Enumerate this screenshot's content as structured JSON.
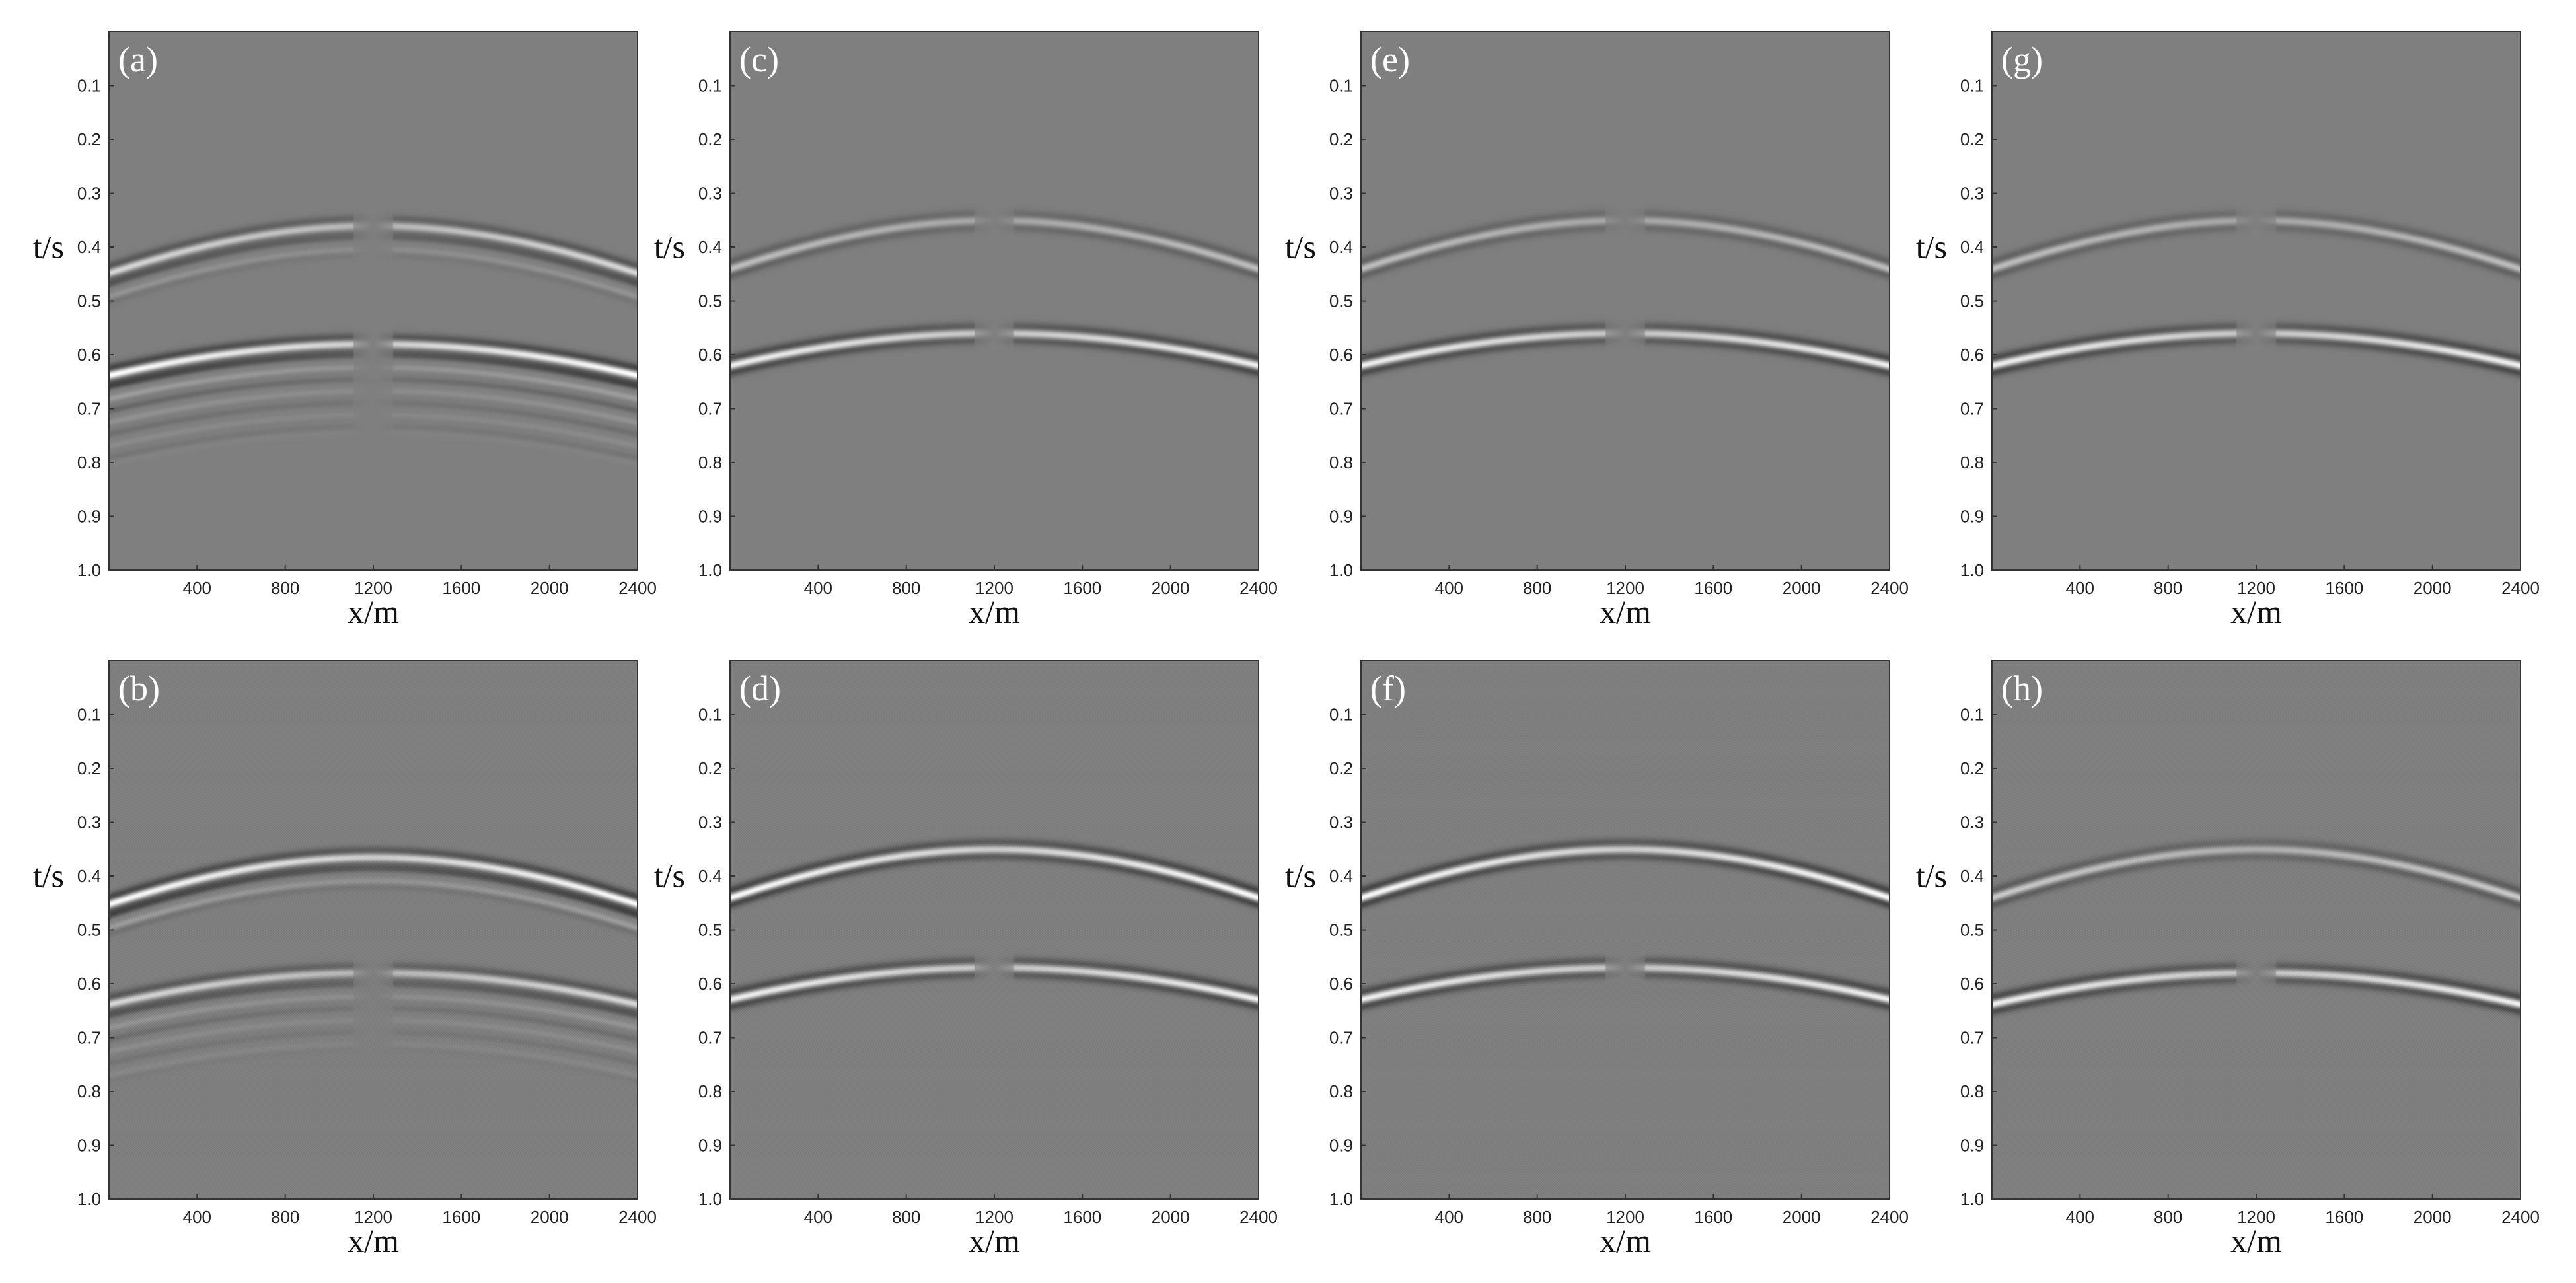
{
  "chart_data": {
    "type": "heatmap",
    "description_hint": "",
    "panels": [
      {
        "label": "(a)",
        "row": 0,
        "col": 0,
        "xlabel": "x/m",
        "ylabel": "t/s",
        "events": [
          {
            "t0": 0.36,
            "amp": 0.7,
            "ringing": 2,
            "gap": true
          },
          {
            "t0": 0.58,
            "amp": 1.0,
            "ringing": 7,
            "gap": true
          }
        ]
      },
      {
        "label": "(b)",
        "row": 1,
        "col": 0,
        "xlabel": "x/m",
        "ylabel": "t/s",
        "events": [
          {
            "t0": 0.365,
            "amp": 1.0,
            "ringing": 2,
            "gap": false
          },
          {
            "t0": 0.58,
            "amp": 0.7,
            "ringing": 6,
            "gap": true
          }
        ]
      },
      {
        "label": "(c)",
        "row": 0,
        "col": 1,
        "xlabel": "x/m",
        "ylabel": "t/s",
        "events": [
          {
            "t0": 0.35,
            "amp": 0.5,
            "ringing": 1,
            "gap": true
          },
          {
            "t0": 0.56,
            "amp": 0.9,
            "ringing": 1,
            "gap": true
          }
        ]
      },
      {
        "label": "(d)",
        "row": 1,
        "col": 1,
        "xlabel": "x/m",
        "ylabel": "t/s",
        "events": [
          {
            "t0": 0.35,
            "amp": 1.0,
            "ringing": 1,
            "gap": false
          },
          {
            "t0": 0.57,
            "amp": 0.9,
            "ringing": 1,
            "gap": true
          }
        ]
      },
      {
        "label": "(e)",
        "row": 0,
        "col": 2,
        "xlabel": "x/m",
        "ylabel": "t/s",
        "events": [
          {
            "t0": 0.35,
            "amp": 0.5,
            "ringing": 1,
            "gap": true
          },
          {
            "t0": 0.56,
            "amp": 0.9,
            "ringing": 1,
            "gap": true
          }
        ]
      },
      {
        "label": "(f)",
        "row": 1,
        "col": 2,
        "xlabel": "x/m",
        "ylabel": "t/s",
        "events": [
          {
            "t0": 0.35,
            "amp": 1.0,
            "ringing": 1,
            "gap": false
          },
          {
            "t0": 0.57,
            "amp": 0.9,
            "ringing": 1,
            "gap": true
          }
        ]
      },
      {
        "label": "(g)",
        "row": 0,
        "col": 3,
        "xlabel": "x/m",
        "ylabel": "t/s",
        "events": [
          {
            "t0": 0.35,
            "amp": 0.5,
            "ringing": 1,
            "gap": true
          },
          {
            "t0": 0.56,
            "amp": 0.9,
            "ringing": 1,
            "gap": true
          }
        ]
      },
      {
        "label": "(h)",
        "row": 1,
        "col": 3,
        "xlabel": "x/m",
        "ylabel": "t/s",
        "events": [
          {
            "t0": 0.35,
            "amp": 0.6,
            "ringing": 1,
            "gap": false
          },
          {
            "t0": 0.58,
            "amp": 0.9,
            "ringing": 1,
            "gap": true
          }
        ]
      }
    ],
    "x_ticks": [
      400,
      800,
      1200,
      1600,
      2000,
      2400
    ],
    "x_tick_labels": [
      "400",
      "800",
      "1200",
      "1600",
      "2000",
      "2400"
    ],
    "y_ticks": [
      0.1,
      0.2,
      0.3,
      0.4,
      0.5,
      0.6,
      0.7,
      0.8,
      0.9,
      1.0
    ],
    "y_tick_labels": [
      "0.1",
      "0.2",
      "0.3",
      "0.4",
      "0.5",
      "0.6",
      "0.7",
      "0.8",
      "0.9",
      "1.0"
    ],
    "xlim": [
      0,
      2400
    ],
    "ylim": [
      0,
      1.0
    ],
    "velocity_m_per_s": 4500,
    "colors": {
      "background": "#7f7f7f",
      "peak": "#ffffff",
      "trough": "#000000"
    }
  }
}
